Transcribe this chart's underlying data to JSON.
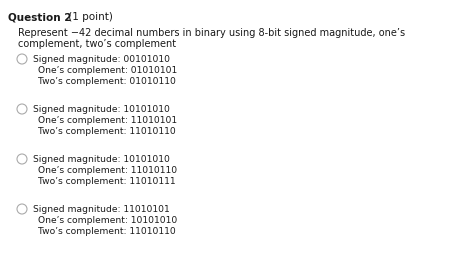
{
  "title_bold": "Question 2",
  "title_normal": " (1 point)",
  "question_text_line1": "Represent −42 decimal numbers in binary using 8-bit signed magnitude, one’s",
  "question_text_line2": "complement, two’s complement",
  "options": [
    {
      "line1": "Signed magnitude: 00101010",
      "line2": "One’s complement: 01010101",
      "line3": "Two’s complement: 01010110"
    },
    {
      "line1": "Signed magnitude: 10101010",
      "line2": "One’s complement: 11010101",
      "line3": "Two’s complement: 11010110"
    },
    {
      "line1": "Signed magnitude: 10101010",
      "line2": "One’s complement: 11010110",
      "line3": "Two’s complement: 11010111"
    },
    {
      "line1": "Signed magnitude: 11010101",
      "line2": "One’s complement: 10101010",
      "line3": "Two’s complement: 11010110"
    }
  ],
  "bg_color": "#ffffff",
  "text_color": "#1a1a1a",
  "font_size_title": 7.5,
  "font_size_question": 7.0,
  "font_size_option": 6.6,
  "circle_color": "#aaaaaa"
}
